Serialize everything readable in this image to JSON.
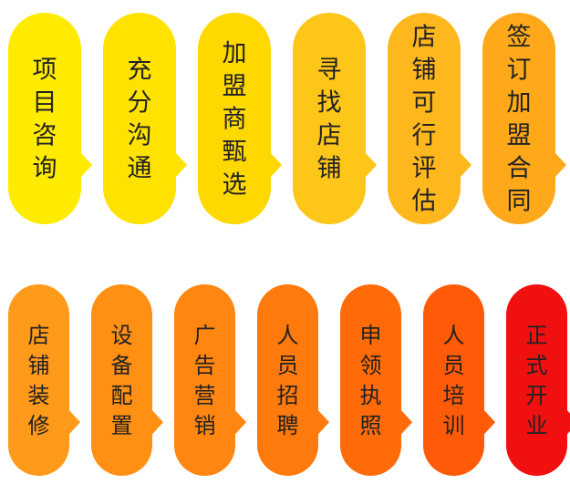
{
  "steps_row1": [
    {
      "label": "项目咨询",
      "color": "#FFEB00"
    },
    {
      "label": "充分沟通",
      "color": "#FFE200"
    },
    {
      "label": "加盟商甄选",
      "color": "#FFD800"
    },
    {
      "label": "寻找店铺",
      "color": "#FFC61A"
    },
    {
      "label": "店铺可行评估",
      "color": "#FFB71E"
    },
    {
      "label": "签订加盟合同",
      "color": "#FFA91A"
    }
  ],
  "steps_row2": [
    {
      "label": "店铺装修",
      "color": "#FF9A1A"
    },
    {
      "label": "设备配置",
      "color": "#FF9014"
    },
    {
      "label": "广告营销",
      "color": "#FF8610"
    },
    {
      "label": "人员招聘",
      "color": "#FF7A0C"
    },
    {
      "label": "申领执照",
      "color": "#FF6B08"
    },
    {
      "label": "人员培训",
      "color": "#FF5A08"
    },
    {
      "label": "正式开业",
      "color": "#F01010"
    }
  ]
}
